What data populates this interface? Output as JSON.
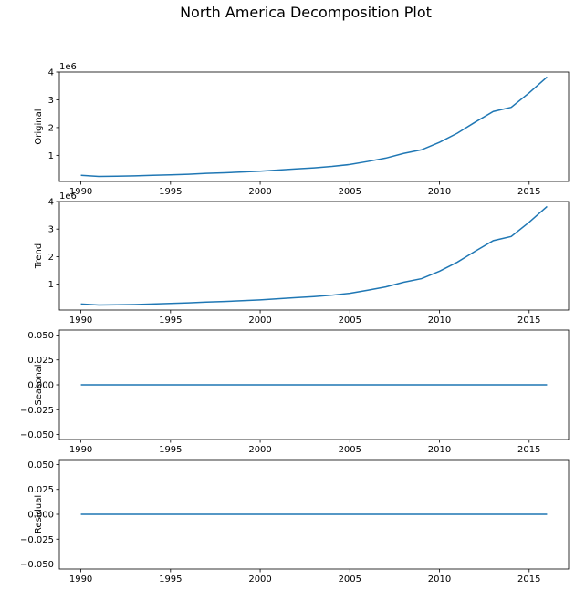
{
  "figure_title": "North America Decomposition Plot",
  "colors": {
    "line": "#1f77b4",
    "axes": "#000000",
    "background": "#ffffff"
  },
  "chart_data": [
    {
      "type": "line",
      "ylabel": "Original",
      "offset_label": "1e6",
      "x": [
        1990,
        1991,
        1992,
        1993,
        1994,
        1995,
        1996,
        1997,
        1998,
        1999,
        2000,
        2001,
        2002,
        2003,
        2004,
        2005,
        2006,
        2007,
        2008,
        2009,
        2010,
        2011,
        2012,
        2013,
        2014,
        2015,
        2016
      ],
      "values": [
        0.28,
        0.24,
        0.25,
        0.26,
        0.28,
        0.3,
        0.32,
        0.35,
        0.37,
        0.4,
        0.43,
        0.47,
        0.51,
        0.55,
        0.6,
        0.67,
        0.78,
        0.9,
        1.07,
        1.2,
        1.47,
        1.8,
        2.2,
        2.58,
        2.73,
        3.25,
        3.82
      ],
      "xlim": [
        1988.8,
        2017.2
      ],
      "ylim": [
        0.06,
        4.0
      ],
      "xticks": [
        1990,
        1995,
        2000,
        2005,
        2010,
        2015
      ],
      "yticks": [
        1,
        2,
        3,
        4
      ],
      "ytick_labels": [
        "1",
        "2",
        "3",
        "4"
      ]
    },
    {
      "type": "line",
      "ylabel": "Trend",
      "offset_label": "1e6",
      "x": [
        1990,
        1991,
        1992,
        1993,
        1994,
        1995,
        1996,
        1997,
        1998,
        1999,
        2000,
        2001,
        2002,
        2003,
        2004,
        2005,
        2006,
        2007,
        2008,
        2009,
        2010,
        2011,
        2012,
        2013,
        2014,
        2015,
        2016
      ],
      "values": [
        0.28,
        0.24,
        0.25,
        0.26,
        0.28,
        0.3,
        0.32,
        0.35,
        0.37,
        0.4,
        0.43,
        0.47,
        0.51,
        0.55,
        0.6,
        0.67,
        0.78,
        0.9,
        1.07,
        1.2,
        1.47,
        1.8,
        2.2,
        2.58,
        2.73,
        3.25,
        3.82
      ],
      "xlim": [
        1988.8,
        2017.2
      ],
      "ylim": [
        0.06,
        4.0
      ],
      "xticks": [
        1990,
        1995,
        2000,
        2005,
        2010,
        2015
      ],
      "yticks": [
        1,
        2,
        3,
        4
      ],
      "ytick_labels": [
        "1",
        "2",
        "3",
        "4"
      ]
    },
    {
      "type": "line",
      "ylabel": "Seasonal",
      "offset_label": "",
      "x": [
        1990,
        2016
      ],
      "values": [
        0.0,
        0.0
      ],
      "xlim": [
        1988.8,
        2017.2
      ],
      "ylim": [
        -0.055,
        0.055
      ],
      "xticks": [
        1990,
        1995,
        2000,
        2005,
        2010,
        2015
      ],
      "yticks": [
        0.05,
        0.025,
        0.0,
        -0.025,
        -0.05
      ],
      "ytick_labels": [
        "0.050",
        "0.025",
        "0.000",
        "−0.025",
        "−0.050"
      ]
    },
    {
      "type": "line",
      "ylabel": "Residual",
      "offset_label": "",
      "x": [
        1990,
        2016
      ],
      "values": [
        0.0,
        0.0
      ],
      "xlim": [
        1988.8,
        2017.2
      ],
      "ylim": [
        -0.055,
        0.055
      ],
      "xticks": [
        1990,
        1995,
        2000,
        2005,
        2010,
        2015
      ],
      "yticks": [
        0.05,
        0.025,
        0.0,
        -0.025,
        -0.05
      ],
      "ytick_labels": [
        "0.050",
        "0.025",
        "0.000",
        "−0.025",
        "−0.050"
      ]
    }
  ]
}
